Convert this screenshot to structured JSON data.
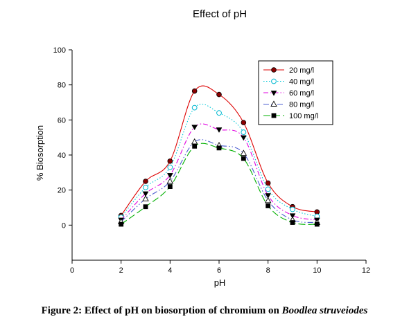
{
  "chart_data": {
    "type": "line",
    "title": "Effect of pH",
    "xlabel": "pH",
    "ylabel": "% Biosorption",
    "xlim": [
      0,
      12
    ],
    "ylim": [
      -20,
      100
    ],
    "xticks": [
      0,
      2,
      4,
      6,
      8,
      10,
      12
    ],
    "yticks": [
      0,
      20,
      40,
      60,
      80,
      100
    ],
    "grid": false,
    "smoothed": true,
    "legend_position": "top-right",
    "x": [
      2,
      3,
      4,
      5,
      6,
      7,
      8,
      9,
      10
    ],
    "series": [
      {
        "name": "20 mg/l",
        "values": [
          5.5,
          25,
          36.5,
          76.5,
          74.5,
          58.5,
          24,
          10.5,
          7.5
        ],
        "color": "#dd0000",
        "marker": "filled-circle",
        "dash": "solid"
      },
      {
        "name": "40 mg/l",
        "values": [
          4.5,
          21.5,
          33,
          67,
          64,
          53,
          20.5,
          9,
          5
        ],
        "color": "#00c8d8",
        "marker": "open-circle",
        "dash": "dotted"
      },
      {
        "name": "60 mg/l",
        "values": [
          3,
          18,
          28.5,
          56,
          54.5,
          50,
          17,
          5.5,
          3
        ],
        "color": "#e000e0",
        "marker": "filled-triangle-down",
        "dash": "dashdot"
      },
      {
        "name": "80 mg/l",
        "values": [
          2,
          15,
          25,
          47.5,
          45.5,
          41,
          14,
          3,
          1.5
        ],
        "color": "#4a5cd0",
        "marker": "open-triangle-up",
        "dash": "dashdotdot"
      },
      {
        "name": "100 mg/l",
        "values": [
          0.5,
          10.5,
          22,
          45,
          44,
          38,
          11,
          1.5,
          0.5
        ],
        "color": "#00b000",
        "marker": "filled-square",
        "dash": "longdash"
      }
    ]
  },
  "caption": {
    "prefix": "Figure 2: Effect of pH on biosorption of chromium on ",
    "species": "Boodlea struveiodes"
  }
}
